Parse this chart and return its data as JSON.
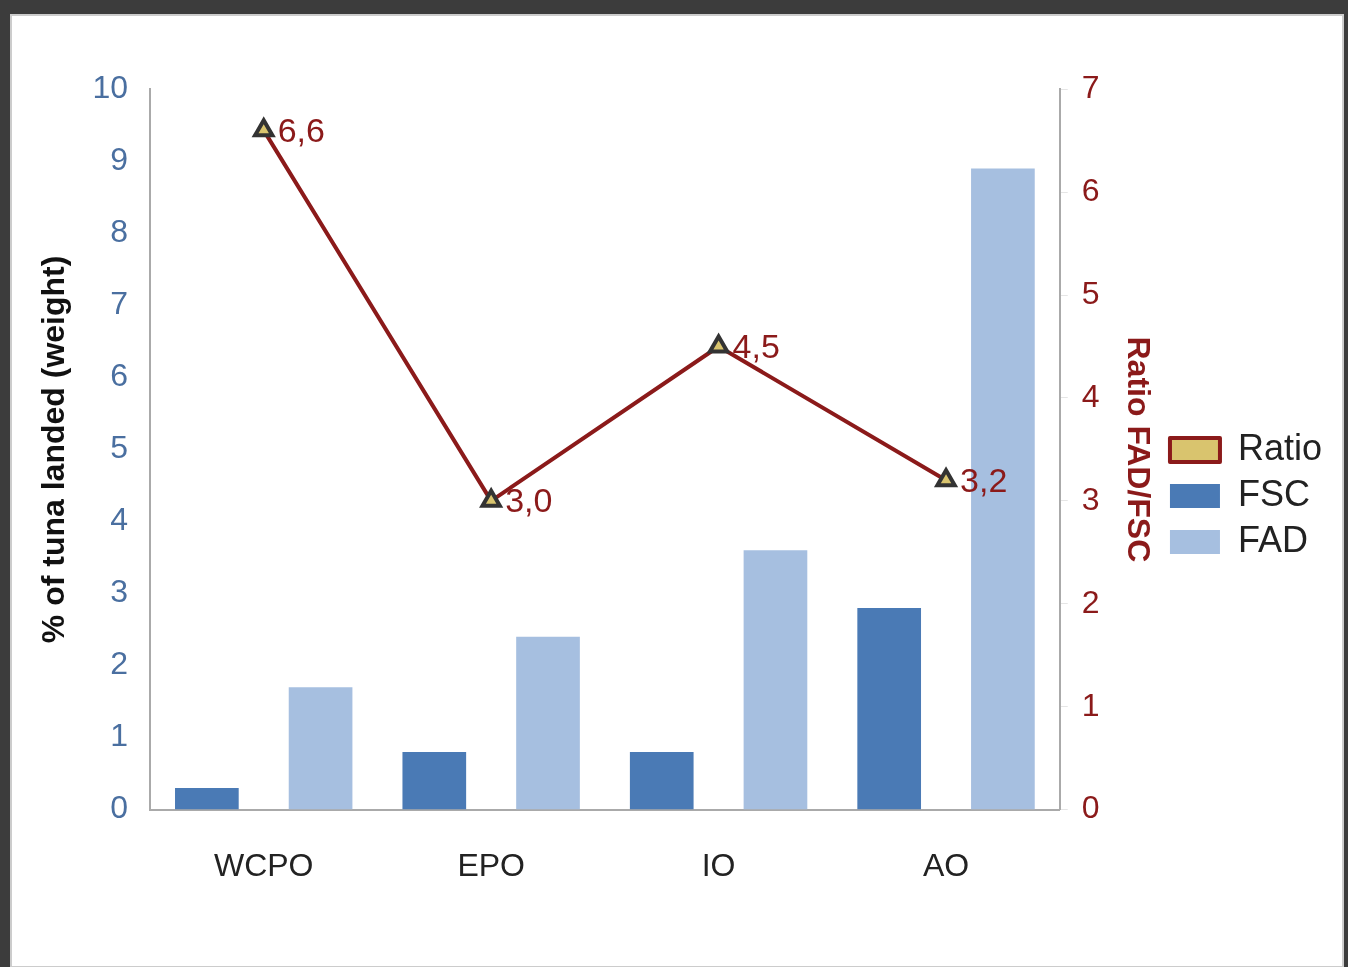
{
  "chart_data": {
    "type": "bar",
    "categories": [
      "WCPO",
      "EPO",
      "IO",
      "AO"
    ],
    "series": [
      {
        "name": "FSC",
        "color": "#4a7ab5",
        "values": [
          0.3,
          0.8,
          0.8,
          2.8
        ]
      },
      {
        "name": "FAD",
        "color": "#a6bfe0",
        "values": [
          1.7,
          2.4,
          3.6,
          8.9
        ]
      },
      {
        "name": "Ratio",
        "type": "line",
        "axis": "y2",
        "color": "#8b1a1a",
        "marker": "triangle",
        "values": [
          6.6,
          3.0,
          4.5,
          3.2
        ],
        "value_labels": [
          "6,6",
          "3,0",
          "4,5",
          "3,2"
        ]
      }
    ],
    "ylabel": "% of tuna landed (weight)",
    "y2label": "Ratio FAD/FSC",
    "ylim": [
      0,
      10
    ],
    "yticks": [
      0,
      1,
      2,
      3,
      4,
      5,
      6,
      7,
      8,
      9,
      10
    ],
    "y2lim": [
      0,
      7
    ],
    "y2ticks": [
      0,
      1,
      2,
      3,
      4,
      5,
      6,
      7
    ],
    "grid": false,
    "legend": "right"
  }
}
